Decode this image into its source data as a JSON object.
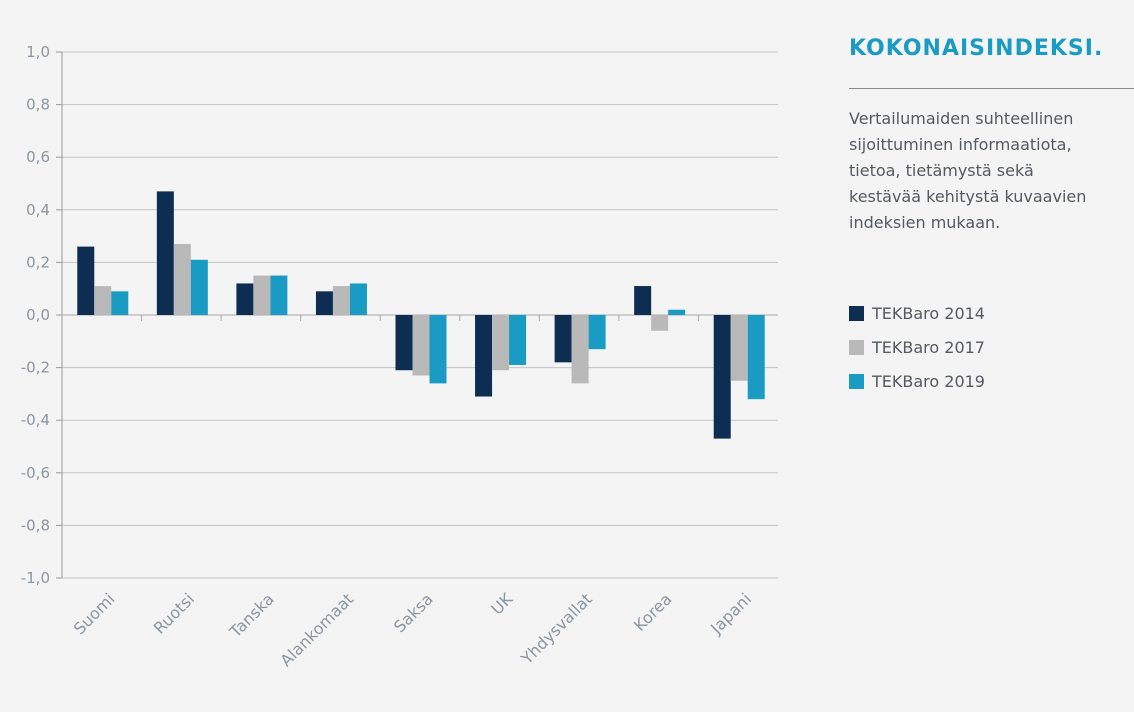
{
  "chart_data": {
    "type": "bar",
    "categories": [
      "Suomi",
      "Ruotsi",
      "Tanska",
      "Alankomaat",
      "Saksa",
      "UK",
      "Yhdysvallat",
      "Korea",
      "Japani"
    ],
    "series": [
      {
        "name": "TEKBaro 2014",
        "color": "#0d2d52",
        "values": [
          0.26,
          0.47,
          0.12,
          0.09,
          -0.21,
          -0.31,
          -0.18,
          0.11,
          -0.47
        ]
      },
      {
        "name": "TEKBaro 2017",
        "color": "#b9b9b9",
        "values": [
          0.11,
          0.27,
          0.15,
          0.11,
          -0.23,
          -0.21,
          -0.26,
          -0.06,
          -0.25
        ]
      },
      {
        "name": "TEKBaro 2019",
        "color": "#1a9bc4",
        "values": [
          0.09,
          0.21,
          0.15,
          0.12,
          -0.26,
          -0.19,
          -0.13,
          0.02,
          -0.32
        ]
      }
    ],
    "ylim": [
      -1.0,
      1.0
    ],
    "yticks": [
      "-1,0",
      "-0,8",
      "-0,6",
      "-0,4",
      "-0,2",
      "0,0",
      "0,2",
      "0,4",
      "0,6",
      "0,8",
      "1,0"
    ],
    "ytick_values": [
      -1.0,
      -0.8,
      -0.6,
      -0.4,
      -0.2,
      0.0,
      0.2,
      0.4,
      0.6,
      0.8,
      1.0
    ],
    "grid": true,
    "legend_position": "right"
  },
  "side_panel": {
    "title": "KOKONAISINDEKSI.",
    "description": "Vertailumaiden suhteellinen sijoittuminen informaatiota, tietoa, tietämystä sekä kestävää kehitystä kuvaavien indeksien mukaan."
  }
}
